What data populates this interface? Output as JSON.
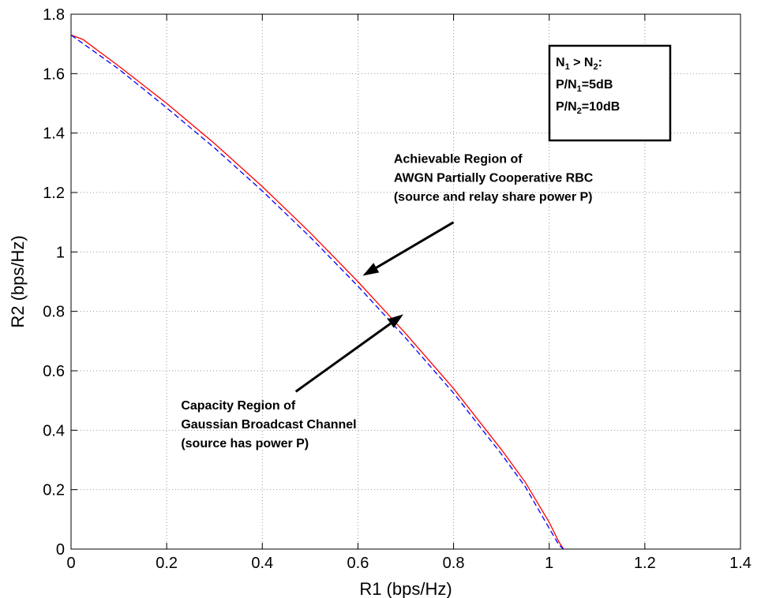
{
  "chart_data": {
    "type": "line",
    "xlabel": "R1 (bps/Hz)",
    "ylabel": "R2 (bps/Hz)",
    "xlim": [
      0,
      1.4
    ],
    "ylim": [
      0,
      1.8
    ],
    "xticks": [
      "0",
      "0.2",
      "0.4",
      "0.6",
      "0.8",
      "1",
      "1.2",
      "1.4"
    ],
    "yticks": [
      "0",
      "0.2",
      "0.4",
      "0.6",
      "0.8",
      "1",
      "1.2",
      "1.4",
      "1.6",
      "1.8"
    ],
    "grid": true,
    "series": [
      {
        "color": "#ff0000",
        "style": "solid",
        "x": [
          0,
          0.025,
          0.1,
          0.2,
          0.3,
          0.4,
          0.5,
          0.6,
          0.7,
          0.8,
          0.9,
          0.95,
          1.0,
          1.02,
          1.03
        ],
        "y": [
          1.73,
          1.715,
          1.625,
          1.5,
          1.365,
          1.22,
          1.065,
          0.9,
          0.725,
          0.54,
          0.335,
          0.225,
          0.09,
          0.025,
          0
        ]
      },
      {
        "color": "#0000ff",
        "style": "dashed",
        "x": [
          0,
          0.1,
          0.2,
          0.3,
          0.4,
          0.5,
          0.6,
          0.7,
          0.8,
          0.9,
          0.95,
          1.0,
          1.02,
          1.03
        ],
        "y": [
          1.73,
          1.615,
          1.485,
          1.35,
          1.205,
          1.05,
          0.885,
          0.71,
          0.525,
          0.32,
          0.21,
          0.07,
          0.015,
          0
        ]
      }
    ],
    "annotations": [
      {
        "lines": [
          "Achievable Region of",
          "AWGN Partially Cooperative RBC",
          "(source and relay share power P)"
        ],
        "text_x": 0.675,
        "text_y": 1.3,
        "arrow_from": [
          0.8,
          1.1
        ],
        "arrow_to": [
          0.61,
          0.92
        ]
      },
      {
        "lines": [
          "Capacity Region of",
          "Gaussian Broadcast Channel",
          "(source has power P)"
        ],
        "text_x": 0.23,
        "text_y": 0.47,
        "arrow_from": [
          0.47,
          0.53
        ],
        "arrow_to": [
          0.695,
          0.79
        ]
      }
    ],
    "legend": {
      "placement": "top-right",
      "lines": [
        {
          "parts": [
            [
              "N",
              ""
            ],
            [
              "1",
              "sub"
            ],
            [
              " > N",
              ""
            ],
            [
              "2",
              "sub"
            ],
            [
              ":",
              ""
            ]
          ]
        },
        {
          "parts": [
            [
              "P/N",
              ""
            ],
            [
              "1",
              "sub"
            ],
            [
              "=5dB",
              ""
            ]
          ]
        },
        {
          "parts": [
            [
              "P/N",
              ""
            ],
            [
              "2",
              "sub"
            ],
            [
              "=10dB",
              ""
            ]
          ]
        }
      ]
    }
  }
}
